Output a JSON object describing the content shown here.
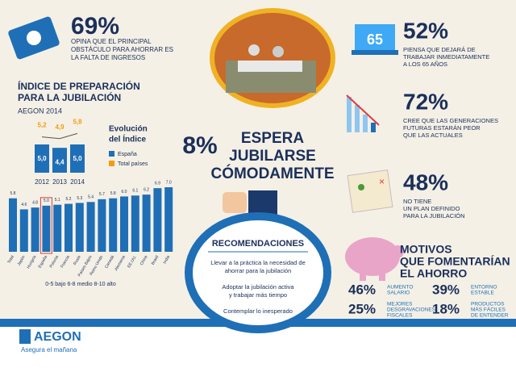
{
  "stat_left": {
    "value": "69%",
    "lines": [
      "OPINA QUE EL PRINCIPAL",
      "OBSTÁCULO PARA AHORRAR ES",
      "LA FALTA DE INGRESOS"
    ]
  },
  "index": {
    "title": [
      "ÍNDICE DE PREPARACIÓN",
      "PARA LA JUBILACIÓN"
    ],
    "source": "AEGON 2014",
    "chart_title": [
      "Evolución",
      "del Índice"
    ],
    "years": [
      "2012",
      "2013",
      "2014"
    ],
    "series": [
      {
        "name": "España",
        "color": "#1f6fb6",
        "values": [
          5.0,
          4.4,
          5.0
        ],
        "value_labels": [
          "5,0",
          "4,4",
          "5,0"
        ]
      },
      {
        "name": "Total países",
        "color": "#f39c12",
        "values": [
          5.2,
          4.9,
          5.8
        ],
        "value_labels": [
          "5,2",
          "4,9",
          "5,8"
        ]
      }
    ]
  },
  "countries": {
    "categories": [
      "Total",
      "Japón",
      "Hungría",
      "España",
      "Polonia",
      "Francia",
      "Rusia",
      "Países Bajos",
      "Reino Unido",
      "Canadá",
      "Alemania",
      "EE.UU.",
      "China",
      "Brasil",
      "India"
    ],
    "values": [
      5.8,
      4.6,
      4.8,
      5.0,
      5.1,
      5.2,
      5.3,
      5.4,
      5.7,
      5.8,
      6.0,
      6.1,
      6.2,
      6.9,
      7.0
    ],
    "value_labels": [
      "5.8",
      "4.6",
      "4.8",
      "5.0",
      "5.1",
      "5.2",
      "5.3",
      "5.4",
      "5.7",
      "5.8",
      "6.0",
      "6.1",
      "6.2",
      "6.9",
      "7.0"
    ],
    "color": "#1f6fb6",
    "highlight": "España",
    "legend": "0-5 bajo   6-8 medio   8-10 alto"
  },
  "center": {
    "value": "8%",
    "lines": [
      "ESPERA",
      "JUBILARSE",
      "CÓMODAMENTE"
    ]
  },
  "recommendations": {
    "title": "RECOMENDACIONES",
    "items": [
      [
        "Llevar a la práctica la necesidad de",
        "ahorrar para la jubilación"
      ],
      [
        "Adoptar la jubilación activa",
        "y trabajar más tiempo"
      ],
      [
        "Contemplar lo inesperado"
      ]
    ]
  },
  "stats_right": [
    {
      "value": "52%",
      "icon": "65",
      "lines": [
        "PIENSA QUE DEJARÁ DE",
        "TRABAJAR INMEDIATAMENTE",
        "A LOS 65 AÑOS"
      ]
    },
    {
      "value": "72%",
      "lines": [
        "CREE QUE LAS GENERACIONES",
        "FUTURAS ESTARÁN PEOR",
        "QUE LAS ACTUALES"
      ]
    },
    {
      "value": "48%",
      "lines": [
        "NO TIENE",
        "UN PLAN DEFINIDO",
        "PARA LA JUBILACIÓN"
      ]
    }
  ],
  "motivos": {
    "title": [
      "MOTIVOS",
      "QUE FOMENTARÍAN",
      "EL AHORRO"
    ],
    "items": [
      {
        "value": "46%",
        "lines": [
          "AUMENTO",
          "SALARIO"
        ]
      },
      {
        "value": "39%",
        "lines": [
          "ENTORNO",
          "ESTABLE"
        ]
      },
      {
        "value": "25%",
        "lines": [
          "MEJORES",
          "DESGRAVACIONES",
          "FISCALES"
        ]
      },
      {
        "value": "18%",
        "lines": [
          "PRODUCTOS",
          "MÁS FÁCILES",
          "DE ENTENDER"
        ]
      }
    ]
  },
  "footer": {
    "brand": "AEGON",
    "tagline": "Asegura el mañana"
  }
}
